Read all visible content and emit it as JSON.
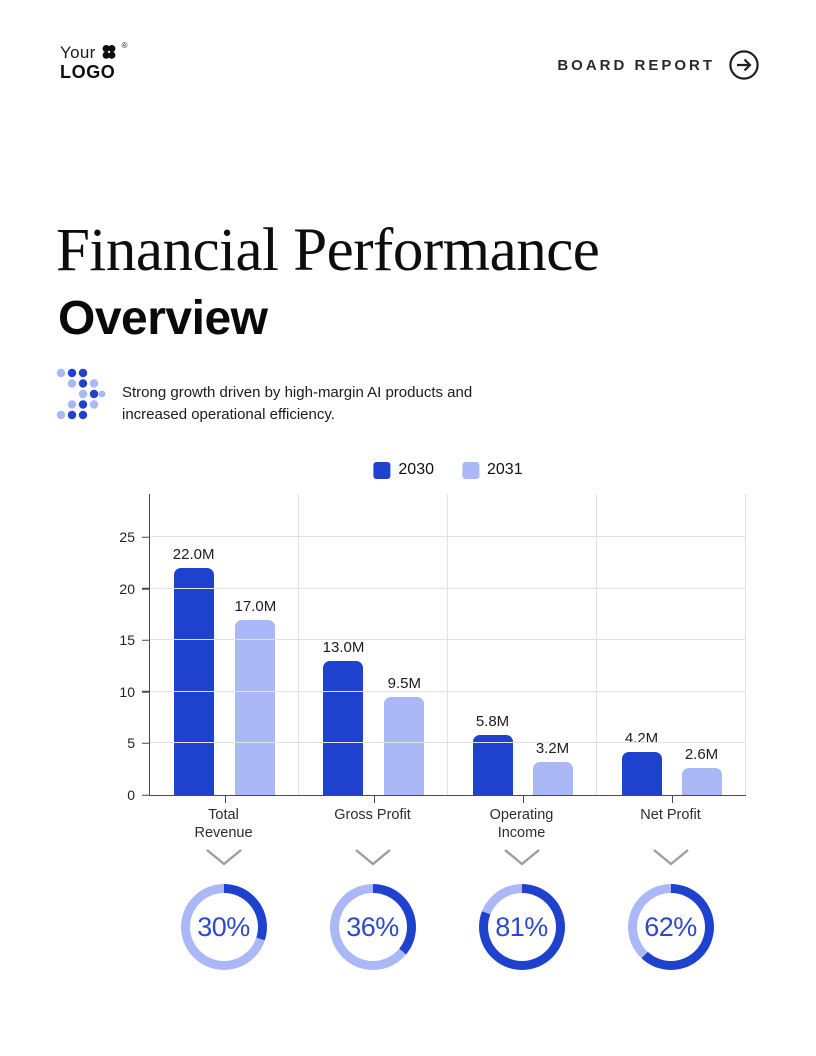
{
  "header": {
    "logo": {
      "word1": "Your",
      "word2": "LOGO",
      "registered": "®"
    },
    "board_report_label": "BOARD REPORT"
  },
  "title": {
    "line1": "Financial Performance",
    "line2": "Overview"
  },
  "subtitle": "Strong growth driven by high-margin AI products and increased operational efficiency.",
  "colors": {
    "primary": "#1e42cd",
    "secondary": "#abb8f8",
    "grid": "#e2e2e2",
    "axis": "#4a4a4a",
    "chevron": "#9e9e9e",
    "donut_text": "#2b4bcb"
  },
  "chart_data": {
    "type": "bar",
    "categories": [
      "Total Revenue",
      "Gross Profit",
      "Operating Income",
      "Net Profit"
    ],
    "series": [
      {
        "name": "2030",
        "color": "#1e42cd",
        "values": [
          22.0,
          13.0,
          5.8,
          4.2
        ],
        "labels": [
          "22.0M",
          "13.0M",
          "5.8M",
          "4.2M"
        ]
      },
      {
        "name": "2031",
        "color": "#abb8f8",
        "values": [
          17.0,
          9.5,
          3.2,
          2.6
        ],
        "labels": [
          "17.0M",
          "9.5M",
          "3.2M",
          "2.6M"
        ]
      }
    ],
    "yticks": [
      0,
      5,
      10,
      15,
      20,
      25
    ],
    "ylim": [
      0,
      29.2
    ],
    "grid": true,
    "legend_position": "top-center",
    "xlabel": "",
    "ylabel": ""
  },
  "kpis": {
    "values": [
      30,
      36,
      81,
      62
    ],
    "suffix": "%"
  }
}
